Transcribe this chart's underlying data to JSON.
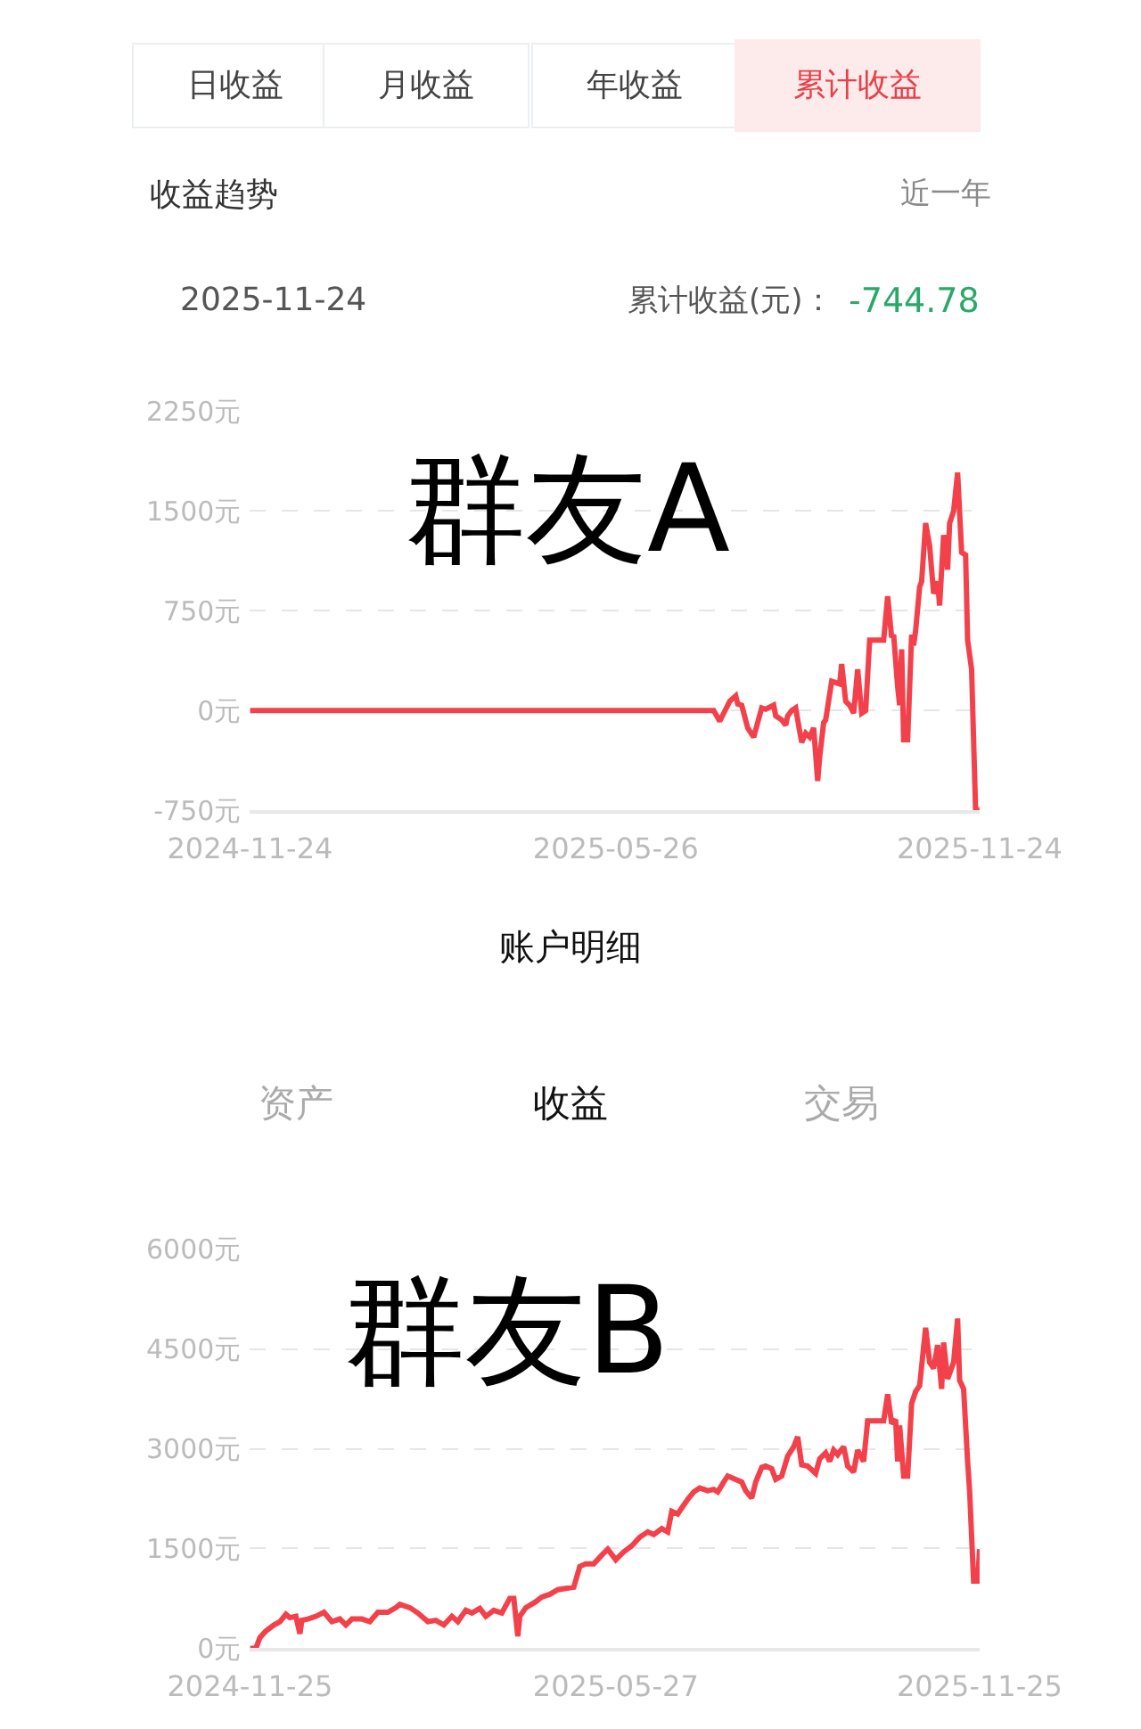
{
  "chart_data": [
    {
      "type": "line",
      "title": "收益趋势",
      "annotations": [
        "日收益",
        "月收益",
        "年收益",
        "累计收益",
        "近一年",
        "2025-11-24",
        "累计收益(元)：",
        "-744.78",
        "群友A"
      ],
      "x": [
        "2024-11-24",
        "2025-07-14",
        "2025-07-17",
        "2025-07-19",
        "2025-07-22",
        "2025-07-25",
        "2025-07-26",
        "2025-07-28",
        "2025-07-31",
        "2025-08-03",
        "2025-08-05",
        "2025-08-07",
        "2025-08-09",
        "2025-08-13",
        "2025-08-14",
        "2025-08-17",
        "2025-08-19",
        "2025-08-20",
        "2025-08-22",
        "2025-08-24",
        "2025-08-25",
        "2025-08-27",
        "2025-08-29",
        "2025-08-31",
        "2025-09-02",
        "2025-09-04",
        "2025-09-05",
        "2025-09-07",
        "2025-09-08",
        "2025-09-11",
        "2025-09-13",
        "2025-09-15",
        "2025-09-16",
        "2025-09-18",
        "2025-09-20",
        "2025-09-22",
        "2025-09-24",
        "2025-09-26",
        "2025-09-28",
        "2025-09-30",
        "2025-10-02",
        "2025-10-07",
        "2025-10-09",
        "2025-10-11",
        "2025-10-12",
        "2025-10-14",
        "2025-10-15",
        "2025-10-16",
        "2025-10-17",
        "2025-10-19",
        "2025-10-21",
        "2025-10-22",
        "2025-10-23",
        "2025-10-25",
        "2025-10-26",
        "2025-10-28",
        "2025-10-30",
        "2025-11-01",
        "2025-11-03",
        "2025-11-04",
        "2025-11-06",
        "2025-11-08",
        "2025-11-09",
        "2025-11-11",
        "2025-11-13",
        "2025-11-15",
        "2025-11-17",
        "2025-11-18",
        "2025-11-20",
        "2025-11-22",
        "2025-11-24"
      ],
      "values": [
        0,
        0,
        -80,
        -20,
        70,
        110,
        50,
        40,
        -130,
        -200,
        -90,
        20,
        10,
        40,
        -40,
        -70,
        -110,
        -40,
        0,
        20,
        -70,
        -240,
        -170,
        -200,
        -130,
        -530,
        -350,
        -90,
        -70,
        220,
        210,
        200,
        350,
        70,
        40,
        -20,
        310,
        -20,
        0,
        530,
        530,
        530,
        860,
        550,
        570,
        180,
        40,
        460,
        -220,
        -220,
        570,
        490,
        600,
        930,
        970,
        1410,
        1240,
        880,
        970,
        790,
        1320,
        1060,
        1410,
        1500,
        1790,
        1190,
        1170,
        530,
        310,
        -750,
        -744.78
      ],
      "color": "#f2414b",
      "xlim": [
        "2024-11-24",
        "2025-11-24"
      ],
      "xticks": [
        "2024-11-24",
        "2025-05-26",
        "2025-11-24"
      ],
      "ylim": [
        -750,
        2250
      ],
      "yticks": [
        {
          "value": -750,
          "label": "-750元"
        },
        {
          "value": 0,
          "label": "0元"
        },
        {
          "value": 750,
          "label": "750元"
        },
        {
          "value": 1500,
          "label": "1500元"
        },
        {
          "value": 2250,
          "label": "2250元"
        }
      ],
      "grid": "y"
    },
    {
      "type": "line",
      "title": "账户明细",
      "annotations": [
        "资产",
        "收益",
        "交易",
        "群友B"
      ],
      "x": [
        "2024-11-25",
        "2024-11-28",
        "2024-11-30",
        "2024-12-03",
        "2024-12-07",
        "2024-12-10",
        "2024-12-13",
        "2024-12-15",
        "2024-12-18",
        "2024-12-20",
        "2024-12-21",
        "2024-12-24",
        "2024-12-28",
        "2025-01-01",
        "2025-01-05",
        "2025-01-09",
        "2025-01-12",
        "2025-01-15",
        "2025-01-20",
        "2025-01-24",
        "2025-01-28",
        "2025-02-02",
        "2025-02-06",
        "2025-02-08",
        "2025-02-13",
        "2025-02-17",
        "2025-02-22",
        "2025-02-26",
        "2025-03-02",
        "2025-03-06",
        "2025-03-09",
        "2025-03-13",
        "2025-03-16",
        "2025-03-20",
        "2025-03-23",
        "2025-03-27",
        "2025-03-31",
        "2025-04-04",
        "2025-04-06",
        "2025-04-08",
        "2025-04-09",
        "2025-04-12",
        "2025-04-17",
        "2025-04-20",
        "2025-04-24",
        "2025-04-28",
        "2025-05-02",
        "2025-05-06",
        "2025-05-09",
        "2025-05-12",
        "2025-05-16",
        "2025-05-20",
        "2025-05-23",
        "2025-05-27",
        "2025-05-31",
        "2025-06-04",
        "2025-06-08",
        "2025-06-12",
        "2025-06-15",
        "2025-06-19",
        "2025-06-22",
        "2025-06-24",
        "2025-06-27",
        "2025-06-29",
        "2025-07-02",
        "2025-07-05",
        "2025-07-08",
        "2025-07-12",
        "2025-07-15",
        "2025-07-17",
        "2025-07-20",
        "2025-07-22",
        "2025-07-26",
        "2025-07-29",
        "2025-07-31",
        "2025-08-03",
        "2025-08-05",
        "2025-08-08",
        "2025-08-10",
        "2025-08-13",
        "2025-08-15",
        "2025-08-18",
        "2025-08-21",
        "2025-08-24",
        "2025-08-26",
        "2025-08-28",
        "2025-08-31",
        "2025-09-04",
        "2025-09-06",
        "2025-09-09",
        "2025-09-11",
        "2025-09-13",
        "2025-09-15",
        "2025-09-18",
        "2025-09-20",
        "2025-09-23",
        "2025-09-25",
        "2025-09-28",
        "2025-09-30",
        "2025-10-04",
        "2025-10-08",
        "2025-10-10",
        "2025-10-12",
        "2025-10-14",
        "2025-10-15",
        "2025-10-16",
        "2025-10-18",
        "2025-10-20",
        "2025-10-22",
        "2025-10-24",
        "2025-10-26",
        "2025-10-29",
        "2025-10-31",
        "2025-11-02",
        "2025-11-04",
        "2025-11-06",
        "2025-11-07",
        "2025-11-09",
        "2025-11-12",
        "2025-11-14",
        "2025-11-15",
        "2025-11-17",
        "2025-11-19",
        "2025-11-20",
        "2025-11-22",
        "2025-11-24",
        "2025-11-25"
      ],
      "values": [
        0,
        0,
        160,
        260,
        350,
        400,
        510,
        460,
        480,
        220,
        420,
        440,
        480,
        540,
        400,
        440,
        350,
        440,
        440,
        400,
        540,
        540,
        610,
        660,
        610,
        530,
        400,
        420,
        350,
        480,
        400,
        570,
        530,
        600,
        480,
        570,
        530,
        750,
        750,
        180,
        480,
        610,
        700,
        770,
        810,
        880,
        900,
        920,
        1230,
        1270,
        1270,
        1400,
        1490,
        1330,
        1450,
        1540,
        1670,
        1750,
        1710,
        1800,
        1750,
        2060,
        2020,
        2110,
        2240,
        2350,
        2410,
        2370,
        2390,
        2350,
        2500,
        2590,
        2540,
        2500,
        2370,
        2260,
        2500,
        2720,
        2740,
        2700,
        2540,
        2590,
        2890,
        3030,
        3180,
        2760,
        2740,
        2630,
        2850,
        2940,
        2810,
        2980,
        2910,
        3030,
        2740,
        2650,
        2980,
        2810,
        3420,
        3420,
        3420,
        3820,
        3380,
        3440,
        2810,
        3350,
        2590,
        2590,
        3680,
        3860,
        3950,
        4820,
        4300,
        4210,
        4560,
        3900,
        4600,
        4050,
        4300,
        4960,
        4030,
        3900,
        2810,
        2370,
        1010,
        1010,
        1490
      ],
      "color": "#f2414b",
      "xlim": [
        "2024-11-25",
        "2025-11-25"
      ],
      "xticks": [
        "2024-11-25",
        "2025-05-27",
        "2025-11-25"
      ],
      "ylim": [
        0,
        6000
      ],
      "yticks": [
        {
          "value": 0,
          "label": "0元"
        },
        {
          "value": 1500,
          "label": "1500元"
        },
        {
          "value": 3000,
          "label": "3000元"
        },
        {
          "value": 4500,
          "label": "4500元"
        },
        {
          "value": 6000,
          "label": "6000元"
        }
      ],
      "grid": "y"
    }
  ]
}
